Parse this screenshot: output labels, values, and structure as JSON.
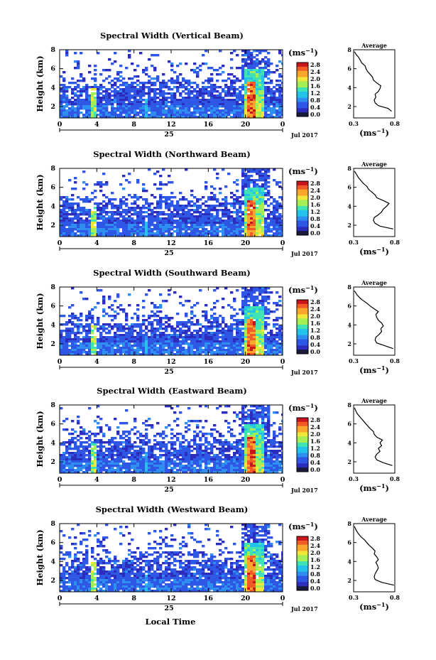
{
  "figure": {
    "x_axis_label": "Local Time",
    "height_axis_label": "Height (km)",
    "unit_label": "(ms",
    "unit_superscript": "−1",
    "date_day": "25",
    "date_month": "Jul 2017",
    "profile_title": "Average",
    "colors": {
      "colormap": [
        "#1a1a3a",
        "#2d2dbd",
        "#2f57e6",
        "#2f8ff0",
        "#23c3ea",
        "#3fe3b4",
        "#a6ee55",
        "#f1e63a",
        "#f8a62c",
        "#f05b28",
        "#c9161c"
      ],
      "profile_line": "#000000"
    }
  },
  "chart_data": [
    {
      "type": "heatmap",
      "title": "Spectral Width (Vertical Beam)",
      "ylabel": "Height (km)",
      "x_ticks": [
        "0",
        "4",
        "8",
        "12",
        "16",
        "20",
        "0"
      ],
      "xlim_hours": [
        0,
        24
      ],
      "y_ticks": [
        "2",
        "4",
        "6",
        "8"
      ],
      "ylim_km": [
        0.8,
        8
      ],
      "colorbar": {
        "label": "(ms−1)",
        "ticks": [
          "0.0",
          "0.4",
          "0.8",
          "1.2",
          "1.6",
          "2.0",
          "2.4",
          "2.8"
        ],
        "range": [
          0,
          2.8
        ]
      },
      "profile": {
        "title": "Average",
        "xlabel": "(ms−1)",
        "x_ticks": [
          "0.3",
          "0.8"
        ],
        "xlim": [
          0.3,
          0.8
        ],
        "y_ticks": [
          "2",
          "4",
          "6",
          "8"
        ],
        "points": [
          [
            0.76,
            1.5
          ],
          [
            0.72,
            1.8
          ],
          [
            0.6,
            2.1
          ],
          [
            0.56,
            2.4
          ],
          [
            0.55,
            2.7
          ],
          [
            0.57,
            3.0
          ],
          [
            0.56,
            3.3
          ],
          [
            0.6,
            3.6
          ],
          [
            0.62,
            3.9
          ],
          [
            0.63,
            4.2
          ],
          [
            0.58,
            4.5
          ],
          [
            0.54,
            4.8
          ],
          [
            0.53,
            5.1
          ],
          [
            0.5,
            5.4
          ],
          [
            0.47,
            5.7
          ],
          [
            0.45,
            6.0
          ],
          [
            0.44,
            6.3
          ],
          [
            0.4,
            6.6
          ],
          [
            0.38,
            6.9
          ],
          [
            0.36,
            7.2
          ],
          [
            0.33,
            7.5
          ],
          [
            0.31,
            7.8
          ]
        ]
      }
    },
    {
      "type": "heatmap",
      "title": "Spectral Width (Northward Beam)",
      "ylabel": "Height (km)",
      "x_ticks": [
        "0",
        "4",
        "8",
        "12",
        "16",
        "20",
        "0"
      ],
      "xlim_hours": [
        0,
        24
      ],
      "y_ticks": [
        "2",
        "4",
        "6",
        "8"
      ],
      "ylim_km": [
        0.8,
        8
      ],
      "colorbar": {
        "label": "(ms−1)",
        "ticks": [
          "0.0",
          "0.4",
          "0.8",
          "1.2",
          "1.6",
          "2.0",
          "2.4",
          "2.8"
        ],
        "range": [
          0,
          2.8
        ]
      },
      "profile": {
        "title": "Average",
        "xlabel": "(ms−1)",
        "x_ticks": [
          "0.3",
          "0.8"
        ],
        "xlim": [
          0.3,
          0.8
        ],
        "y_ticks": [
          "2",
          "4",
          "6",
          "8"
        ],
        "points": [
          [
            0.78,
            1.6
          ],
          [
            0.62,
            1.9
          ],
          [
            0.56,
            2.2
          ],
          [
            0.54,
            2.5
          ],
          [
            0.55,
            2.8
          ],
          [
            0.6,
            3.1
          ],
          [
            0.64,
            3.4
          ],
          [
            0.66,
            3.7
          ],
          [
            0.7,
            4.0
          ],
          [
            0.73,
            4.3
          ],
          [
            0.66,
            4.6
          ],
          [
            0.58,
            4.9
          ],
          [
            0.56,
            5.2
          ],
          [
            0.52,
            5.5
          ],
          [
            0.48,
            5.8
          ],
          [
            0.46,
            6.1
          ],
          [
            0.42,
            6.4
          ],
          [
            0.39,
            6.7
          ],
          [
            0.36,
            7.0
          ],
          [
            0.34,
            7.3
          ],
          [
            0.31,
            7.7
          ]
        ]
      }
    },
    {
      "type": "heatmap",
      "title": "Spectral Width (Southward Beam)",
      "ylabel": "Height (km)",
      "x_ticks": [
        "0",
        "4",
        "8",
        "12",
        "16",
        "20",
        "0"
      ],
      "xlim_hours": [
        0,
        24
      ],
      "y_ticks": [
        "2",
        "4",
        "6",
        "8"
      ],
      "ylim_km": [
        0.8,
        8
      ],
      "colorbar": {
        "label": "(ms−1)",
        "ticks": [
          "0.0",
          "0.4",
          "0.8",
          "1.2",
          "1.6",
          "2.0",
          "2.4",
          "2.8"
        ],
        "range": [
          0,
          2.8
        ]
      },
      "profile": {
        "title": "Average",
        "xlabel": "(ms−1)",
        "x_ticks": [
          "0.3",
          "0.8"
        ],
        "xlim": [
          0.3,
          0.8
        ],
        "y_ticks": [
          "2",
          "4",
          "6",
          "8"
        ],
        "points": [
          [
            0.78,
            1.5
          ],
          [
            0.68,
            1.8
          ],
          [
            0.58,
            2.1
          ],
          [
            0.56,
            2.4
          ],
          [
            0.57,
            2.7
          ],
          [
            0.61,
            3.0
          ],
          [
            0.64,
            3.3
          ],
          [
            0.63,
            3.6
          ],
          [
            0.66,
            3.9
          ],
          [
            0.64,
            4.2
          ],
          [
            0.6,
            4.5
          ],
          [
            0.58,
            4.8
          ],
          [
            0.57,
            5.1
          ],
          [
            0.6,
            5.4
          ],
          [
            0.55,
            5.7
          ],
          [
            0.5,
            6.0
          ],
          [
            0.46,
            6.3
          ],
          [
            0.41,
            6.6
          ],
          [
            0.37,
            6.9
          ],
          [
            0.34,
            7.2
          ],
          [
            0.31,
            7.6
          ]
        ]
      }
    },
    {
      "type": "heatmap",
      "title": "Spectral Width (Eastward Beam)",
      "ylabel": "Height (km)",
      "x_ticks": [
        "0",
        "4",
        "8",
        "12",
        "16",
        "20",
        "0"
      ],
      "xlim_hours": [
        0,
        24
      ],
      "y_ticks": [
        "2",
        "4",
        "6",
        "8"
      ],
      "ylim_km": [
        0.8,
        8
      ],
      "colorbar": {
        "label": "(ms−1)",
        "ticks": [
          "0.0",
          "0.4",
          "0.8",
          "1.2",
          "1.6",
          "2.0",
          "2.4",
          "2.8"
        ],
        "range": [
          0,
          2.8
        ]
      },
      "profile": {
        "title": "Average",
        "xlabel": "(ms−1)",
        "x_ticks": [
          "0.3",
          "0.8"
        ],
        "xlim": [
          0.3,
          0.8
        ],
        "y_ticks": [
          "2",
          "4",
          "6",
          "8"
        ],
        "points": [
          [
            0.77,
            1.6
          ],
          [
            0.66,
            1.9
          ],
          [
            0.58,
            2.2
          ],
          [
            0.56,
            2.5
          ],
          [
            0.58,
            2.8
          ],
          [
            0.62,
            3.1
          ],
          [
            0.6,
            3.4
          ],
          [
            0.64,
            3.7
          ],
          [
            0.62,
            4.0
          ],
          [
            0.65,
            4.3
          ],
          [
            0.58,
            4.6
          ],
          [
            0.55,
            4.9
          ],
          [
            0.54,
            5.2
          ],
          [
            0.5,
            5.5
          ],
          [
            0.47,
            5.8
          ],
          [
            0.44,
            6.1
          ],
          [
            0.41,
            6.4
          ],
          [
            0.38,
            6.7
          ],
          [
            0.35,
            7.0
          ],
          [
            0.33,
            7.3
          ],
          [
            0.31,
            7.7
          ]
        ]
      }
    },
    {
      "type": "heatmap",
      "title": "Spectral Width (Westward Beam)",
      "ylabel": "Height (km)",
      "x_ticks": [
        "0",
        "4",
        "8",
        "12",
        "16",
        "20",
        "0"
      ],
      "xlim_hours": [
        0,
        24
      ],
      "y_ticks": [
        "2",
        "4",
        "6",
        "8"
      ],
      "ylim_km": [
        0.8,
        8
      ],
      "colorbar": {
        "label": "(ms−1)",
        "ticks": [
          "0.0",
          "0.4",
          "0.8",
          "1.2",
          "1.6",
          "2.0",
          "2.4",
          "2.8"
        ],
        "range": [
          0,
          2.8
        ]
      },
      "profile": {
        "title": "Average",
        "xlabel": "(ms−1)",
        "x_ticks": [
          "0.3",
          "0.8"
        ],
        "xlim": [
          0.3,
          0.8
        ],
        "y_ticks": [
          "2",
          "4",
          "6",
          "8"
        ],
        "points": [
          [
            0.79,
            1.5
          ],
          [
            0.64,
            1.8
          ],
          [
            0.56,
            2.1
          ],
          [
            0.55,
            2.4
          ],
          [
            0.56,
            2.7
          ],
          [
            0.58,
            3.0
          ],
          [
            0.6,
            3.3
          ],
          [
            0.59,
            3.6
          ],
          [
            0.57,
            3.9
          ],
          [
            0.6,
            4.2
          ],
          [
            0.58,
            4.5
          ],
          [
            0.55,
            4.8
          ],
          [
            0.56,
            5.1
          ],
          [
            0.53,
            5.4
          ],
          [
            0.49,
            5.7
          ],
          [
            0.46,
            6.0
          ],
          [
            0.43,
            6.3
          ],
          [
            0.39,
            6.6
          ],
          [
            0.36,
            6.9
          ],
          [
            0.33,
            7.3
          ],
          [
            0.31,
            7.7
          ]
        ]
      }
    }
  ]
}
